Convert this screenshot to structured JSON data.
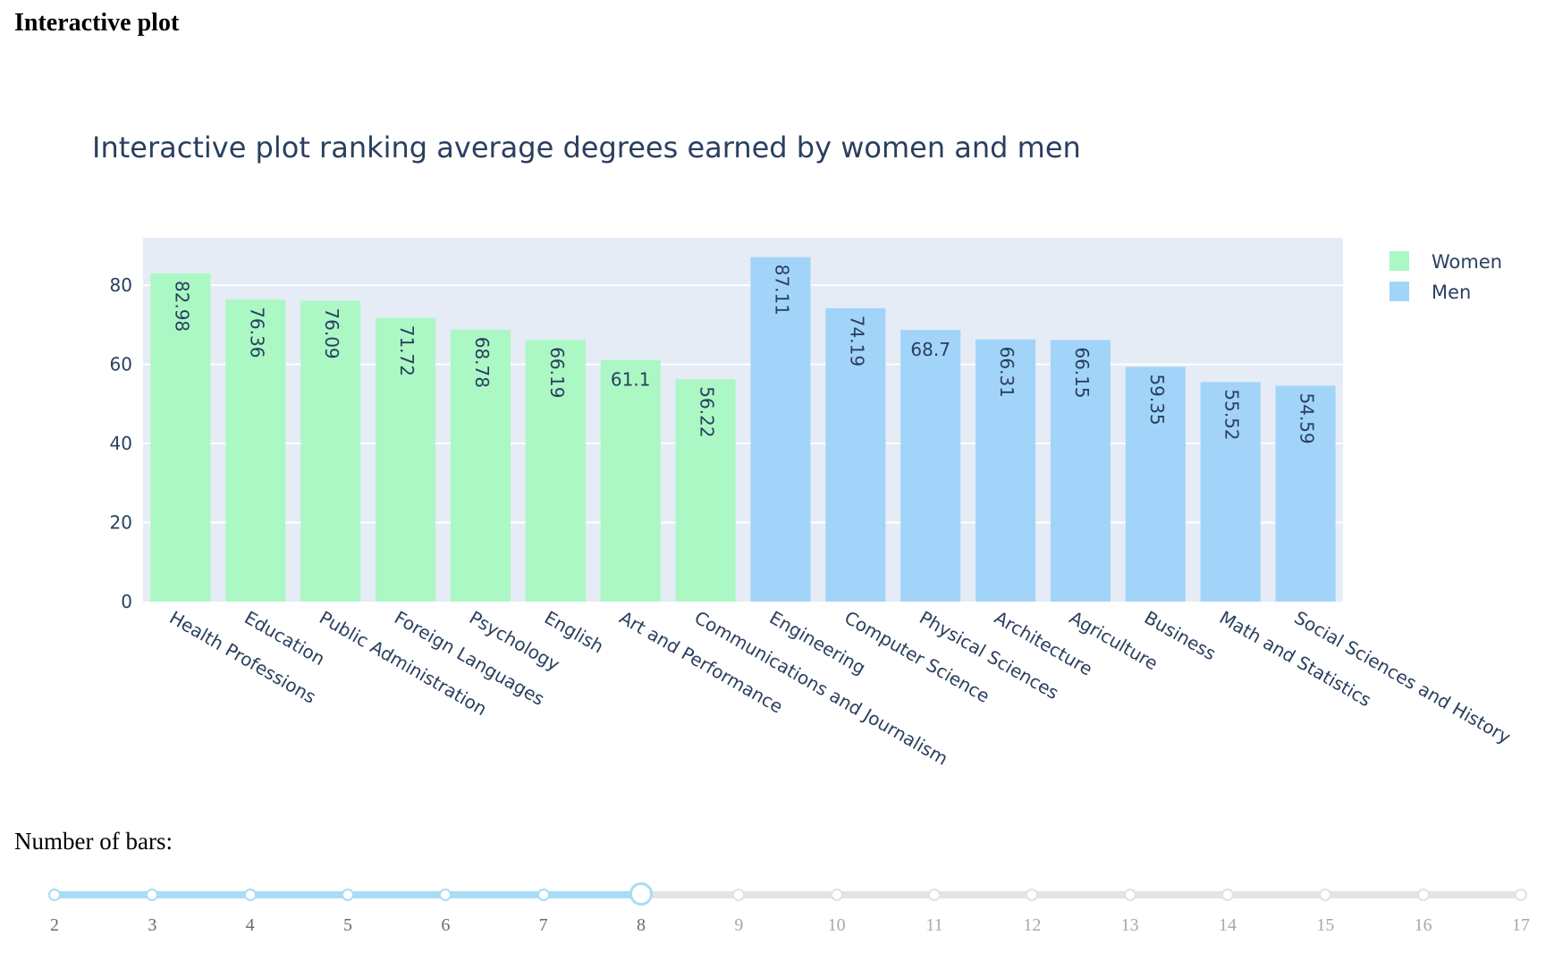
{
  "page": {
    "heading": "Interactive plot"
  },
  "chart_data": {
    "type": "bar",
    "title": "Interactive plot ranking average degrees earned by women and men",
    "xlabel": "",
    "ylabel": "",
    "ylim": [
      0,
      92
    ],
    "yticks": [
      0,
      20,
      40,
      60,
      80
    ],
    "grid": true,
    "legend_position": "top-right",
    "categories": [
      "Health Professions",
      "Education",
      "Public Administration",
      "Foreign Languages",
      "Psychology",
      "English",
      "Art and Performance",
      "Communications and Journalism",
      "Engineering",
      "Computer Science",
      "Physical Sciences",
      "Architecture",
      "Agriculture",
      "Business",
      "Math and Statistics",
      "Social Sciences and History"
    ],
    "series": [
      {
        "name": "Women",
        "color": "#abf8c4",
        "values": [
          82.98,
          76.36,
          76.09,
          71.72,
          68.78,
          66.19,
          61.1,
          56.22,
          null,
          null,
          null,
          null,
          null,
          null,
          null,
          null
        ],
        "labels": [
          "82.98",
          "76.36",
          "76.09",
          "71.72",
          "68.78",
          "66.19",
          "61.1",
          "56.22",
          "",
          "",
          "",
          "",
          "",
          "",
          "",
          ""
        ]
      },
      {
        "name": "Men",
        "color": "#a2d4f9",
        "values": [
          null,
          null,
          null,
          null,
          null,
          null,
          null,
          null,
          87.11,
          74.19,
          68.7,
          66.31,
          66.15,
          59.35,
          55.52,
          54.59
        ],
        "labels": [
          "",
          "",
          "",
          "",
          "",
          "",
          "",
          "",
          "87.11",
          "74.19",
          "68.7",
          "66.31",
          "66.15",
          "59.35",
          "55.52",
          "54.59"
        ]
      }
    ]
  },
  "slider": {
    "label": "Number of bars:",
    "min": 2,
    "max": 17,
    "value": 8,
    "ticks": [
      "2",
      "3",
      "4",
      "5",
      "6",
      "7",
      "8",
      "9",
      "10",
      "11",
      "12",
      "13",
      "14",
      "15",
      "16",
      "17"
    ]
  }
}
